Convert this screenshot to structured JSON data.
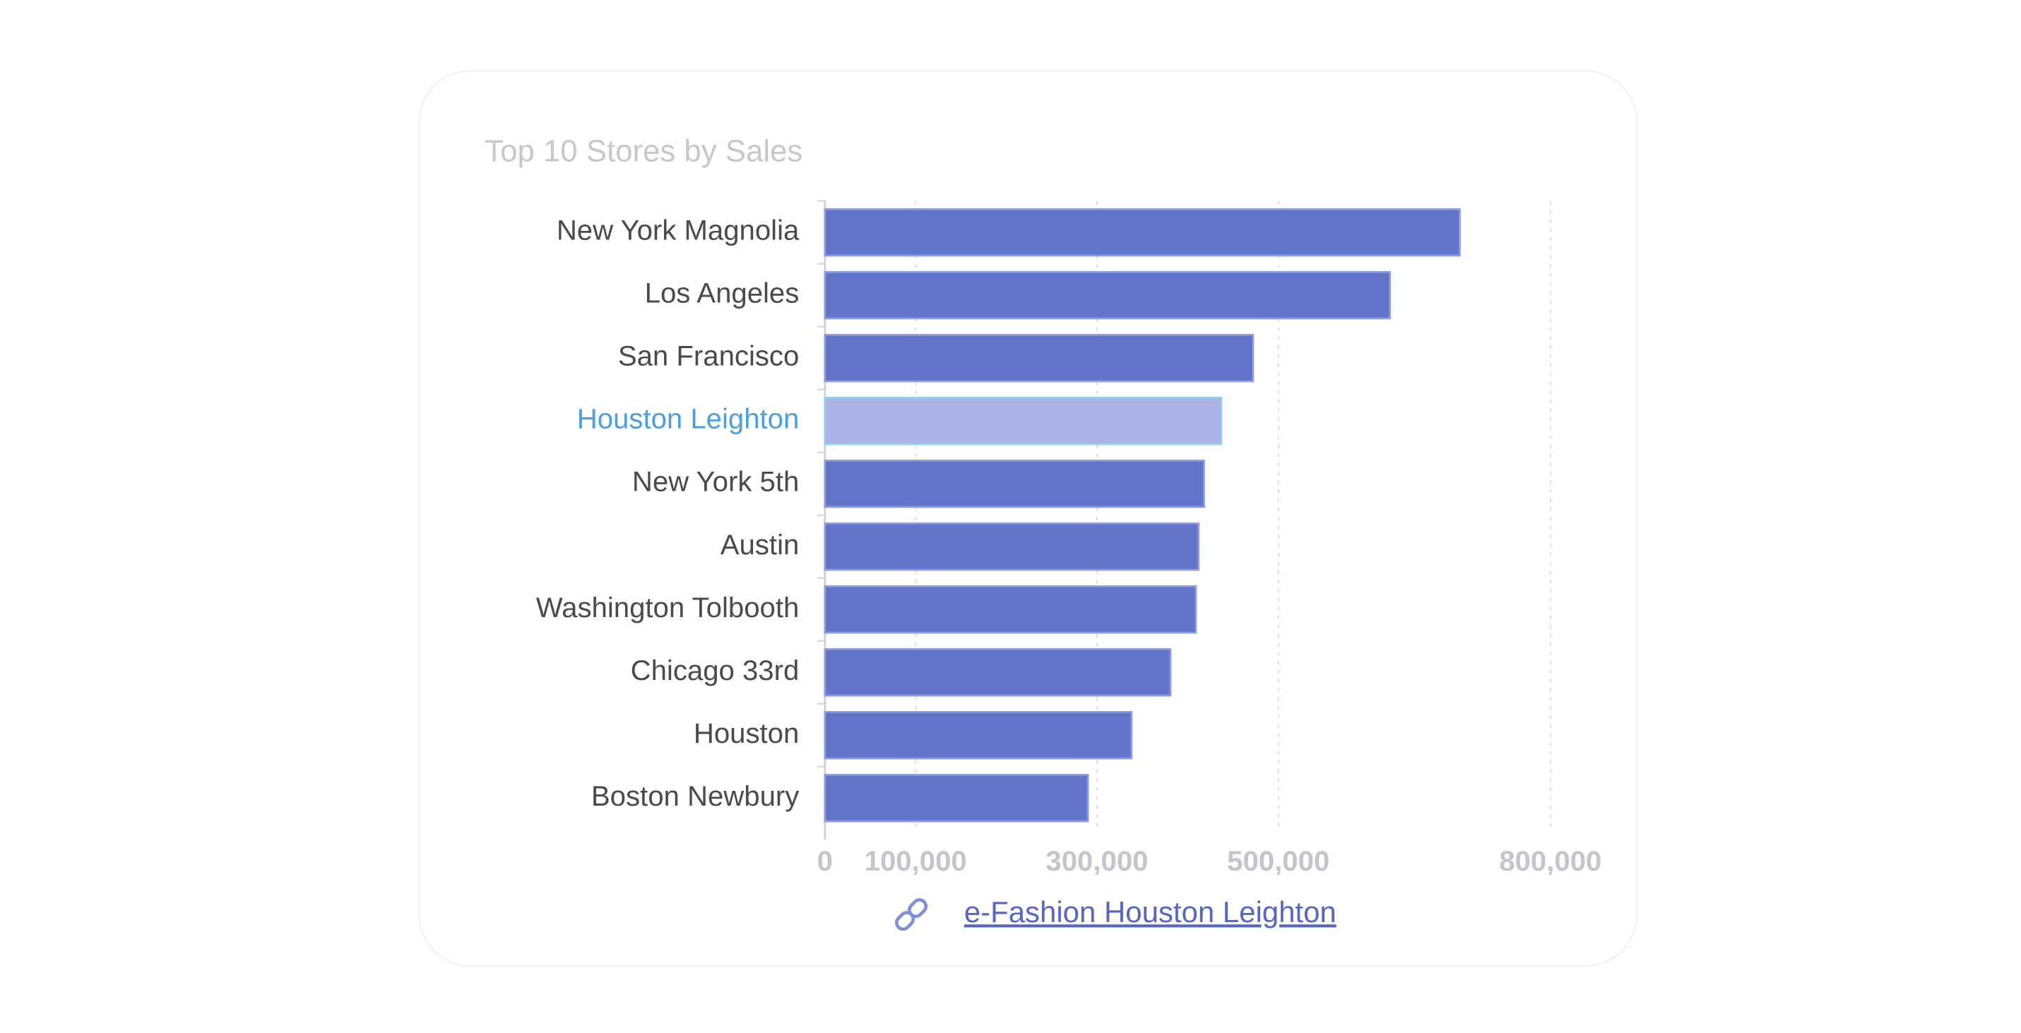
{
  "chart_data": {
    "type": "bar",
    "orientation": "horizontal",
    "title": "Top 10 Stores by Sales",
    "categories": [
      "New York Magnolia",
      "Los Angeles",
      "San Francisco",
      "Houston Leighton",
      "New York 5th",
      "Austin",
      "Washington Tolbooth",
      "Chicago 33rd",
      "Houston",
      "Boston Newbury"
    ],
    "values": [
      700000,
      623000,
      472000,
      437000,
      418000,
      412000,
      409000,
      381000,
      338000,
      290000
    ],
    "color": "#6274c9",
    "highlight_index": 3,
    "highlight_color": "#adb3e6",
    "highlight_label_color": "#4a9fe0",
    "xlim": [
      0,
      800000
    ],
    "xticks": [
      0,
      {
        "value": 100000,
        "label": "100,000"
      },
      {
        "value": 300000,
        "label": "300,000"
      },
      {
        "value": 500000,
        "label": "500,000"
      },
      {
        "value": 800000,
        "label": "800,000"
      }
    ],
    "grid": true
  },
  "link": {
    "text": "e-Fashion Houston Leighton"
  }
}
